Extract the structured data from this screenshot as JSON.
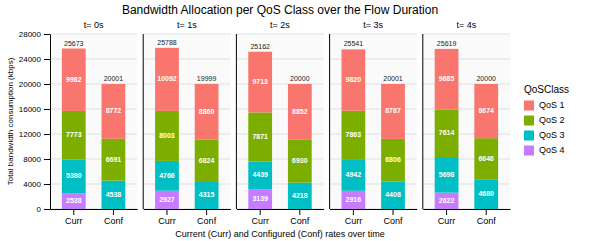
{
  "title": "Bandwidth Allocation per QoS Class over the Flow Duration",
  "xlabel": "Current (Curr) and Configured (Conf) rates over time",
  "ylabel": "Total bandwidth consumption (kbps)",
  "legend_title": "QoSClass",
  "chart_data": [
    {
      "type": "bar",
      "stacked": true,
      "data_labels": true,
      "grid": true,
      "legend": "right",
      "title": "t= 0s",
      "categories": [
        "Curr",
        "Conf"
      ],
      "series": [
        {
          "name": "QoS 4",
          "color": "#C77CFF",
          "values": [
            2538,
            0
          ]
        },
        {
          "name": "QoS 3",
          "color": "#00BFC4",
          "values": [
            5380,
            4538
          ]
        },
        {
          "name": "QoS 2",
          "color": "#7CAE00",
          "values": [
            7773,
            6691
          ]
        },
        {
          "name": "QoS 1",
          "color": "#F8766D",
          "values": [
            9982,
            8772
          ]
        }
      ],
      "totals": [
        25673,
        20001
      ],
      "ylim": [
        0,
        28000
      ],
      "yticks": [
        0,
        4000,
        8000,
        12000,
        16000,
        20000,
        24000,
        28000
      ]
    },
    {
      "type": "bar",
      "stacked": true,
      "data_labels": true,
      "grid": true,
      "title": "t= 1s",
      "categories": [
        "Curr",
        "Conf"
      ],
      "series": [
        {
          "name": "QoS 4",
          "color": "#C77CFF",
          "values": [
            2927,
            0
          ]
        },
        {
          "name": "QoS 3",
          "color": "#00BFC4",
          "values": [
            4766,
            4315
          ]
        },
        {
          "name": "QoS 2",
          "color": "#7CAE00",
          "values": [
            8003,
            6824
          ]
        },
        {
          "name": "QoS 1",
          "color": "#F8766D",
          "values": [
            10092,
            8860
          ]
        }
      ],
      "totals": [
        25788,
        19999
      ],
      "ylim": [
        0,
        28000
      ],
      "yticks": [
        0,
        4000,
        8000,
        12000,
        16000,
        20000,
        24000,
        28000
      ]
    },
    {
      "type": "bar",
      "stacked": true,
      "data_labels": true,
      "grid": true,
      "title": "t= 2s",
      "categories": [
        "Curr",
        "Conf"
      ],
      "series": [
        {
          "name": "QoS 4",
          "color": "#C77CFF",
          "values": [
            3139,
            0
          ]
        },
        {
          "name": "QoS 3",
          "color": "#00BFC4",
          "values": [
            4439,
            4218
          ]
        },
        {
          "name": "QoS 2",
          "color": "#7CAE00",
          "values": [
            7871,
            6930
          ]
        },
        {
          "name": "QoS 1",
          "color": "#F8766D",
          "values": [
            9713,
            8852
          ]
        }
      ],
      "totals": [
        25162,
        20000
      ],
      "ylim": [
        0,
        28000
      ],
      "yticks": [
        0,
        4000,
        8000,
        12000,
        16000,
        20000,
        24000,
        28000
      ]
    },
    {
      "type": "bar",
      "stacked": true,
      "data_labels": true,
      "grid": true,
      "title": "t= 3s",
      "categories": [
        "Curr",
        "Conf"
      ],
      "series": [
        {
          "name": "QoS 4",
          "color": "#C77CFF",
          "values": [
            2916,
            0
          ]
        },
        {
          "name": "QoS 3",
          "color": "#00BFC4",
          "values": [
            4942,
            4408
          ]
        },
        {
          "name": "QoS 2",
          "color": "#7CAE00",
          "values": [
            7863,
            6806
          ]
        },
        {
          "name": "QoS 1",
          "color": "#F8766D",
          "values": [
            9820,
            8787
          ]
        }
      ],
      "totals": [
        25541,
        20001
      ],
      "ylim": [
        0,
        28000
      ],
      "yticks": [
        0,
        4000,
        8000,
        12000,
        16000,
        20000,
        24000,
        28000
      ]
    },
    {
      "type": "bar",
      "stacked": true,
      "data_labels": true,
      "grid": true,
      "title": "t= 4s",
      "categories": [
        "Curr",
        "Conf"
      ],
      "series": [
        {
          "name": "QoS 4",
          "color": "#C77CFF",
          "values": [
            2622,
            0
          ]
        },
        {
          "name": "QoS 3",
          "color": "#00BFC4",
          "values": [
            5698,
            4680
          ]
        },
        {
          "name": "QoS 2",
          "color": "#7CAE00",
          "values": [
            7614,
            6646
          ]
        },
        {
          "name": "QoS 1",
          "color": "#F8766D",
          "values": [
            9685,
            8674
          ]
        }
      ],
      "totals": [
        25619,
        20000
      ],
      "ylim": [
        0,
        28000
      ],
      "yticks": [
        0,
        4000,
        8000,
        12000,
        16000,
        20000,
        24000,
        28000
      ]
    }
  ]
}
